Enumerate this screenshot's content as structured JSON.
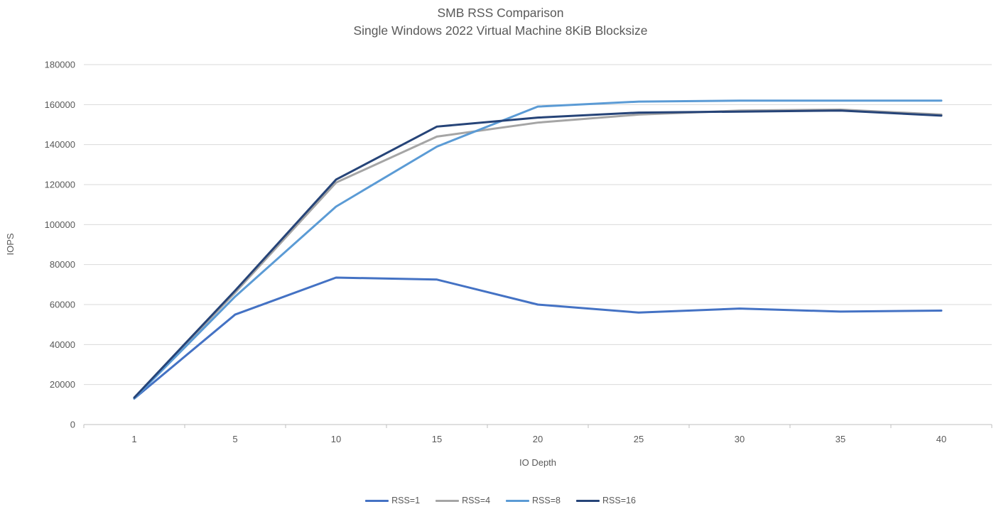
{
  "title": {
    "line1": "SMB RSS Comparison",
    "line2": "Single Windows 2022 Virtual Machine 8KiB Blocksize"
  },
  "colors": {
    "text": "#595959",
    "gridline": "#D9D9D9",
    "axis_line": "#BFBFBF",
    "series_rss1": "#4472C4",
    "series_rss4": "#A5A5A5",
    "series_rss8": "#5B9BD5",
    "series_rss16": "#264478"
  },
  "chart_data": {
    "type": "line",
    "title": "SMB RSS Comparison",
    "subtitle": "Single Windows 2022 Virtual Machine 8KiB Blocksize",
    "xlabel": "IO Depth",
    "ylabel": "IOPS",
    "categories": [
      1,
      5,
      10,
      15,
      20,
      25,
      30,
      35,
      40
    ],
    "ylim": [
      0,
      180000
    ],
    "y_tick_step": 20000,
    "y_tick_labels": [
      "0",
      "20000",
      "40000",
      "60000",
      "80000",
      "100000",
      "120000",
      "140000",
      "160000",
      "180000"
    ],
    "grid": true,
    "legend_position": "bottom",
    "series": [
      {
        "name": "RSS=1",
        "color": "#4472C4",
        "values": [
          13000,
          55000,
          73500,
          72500,
          60000,
          56000,
          58000,
          56500,
          57000
        ]
      },
      {
        "name": "RSS=4",
        "color": "#A5A5A5",
        "values": [
          13300,
          66000,
          121000,
          144000,
          151000,
          155000,
          157000,
          157500,
          155000
        ]
      },
      {
        "name": "RSS=8",
        "color": "#5B9BD5",
        "values": [
          13100,
          64000,
          109000,
          139000,
          159000,
          161500,
          162000,
          162000,
          162000
        ]
      },
      {
        "name": "RSS=16",
        "color": "#264478",
        "values": [
          13500,
          67000,
          122500,
          149000,
          153500,
          156000,
          156500,
          157000,
          154500
        ]
      }
    ]
  }
}
